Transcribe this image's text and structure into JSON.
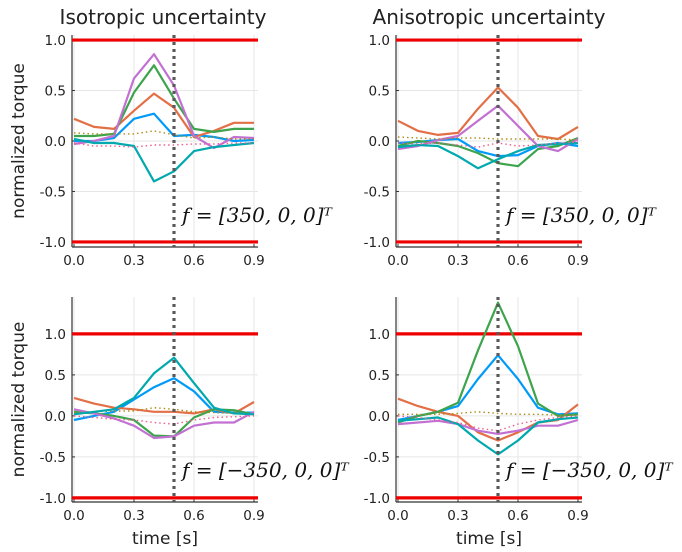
{
  "colors": {
    "limit": "#ee0000",
    "marker": "#5a5a5a",
    "grid": "#e6e6e6",
    "series": [
      "#009af9",
      "#e26f46",
      "#3da44d",
      "#c271d2",
      "#ac8d18",
      "#00a9ad",
      "#ed5d92"
    ]
  },
  "chart_data": [
    {
      "type": "line",
      "title": "Isotropic uncertainty",
      "xlabel": "",
      "ylabel": "normalized torque",
      "annotation": "f = [350, 0, 0]ᵀ",
      "xlim": [
        -0.01,
        0.92
      ],
      "ylim": [
        -1.05,
        1.05
      ],
      "xticks": [
        "0.0",
        "0.3",
        "0.6",
        "0.9"
      ],
      "yticks": [
        "-1.0",
        "-0.5",
        "0.0",
        "0.5",
        "1.0"
      ],
      "limits": [
        1.0,
        -1.0
      ],
      "event_x": 0.5,
      "x": [
        0.0,
        0.1,
        0.2,
        0.3,
        0.4,
        0.5,
        0.6,
        0.7,
        0.8,
        0.9
      ],
      "series": [
        {
          "values": [
            0.0,
            0.0,
            0.03,
            0.22,
            0.27,
            0.05,
            0.06,
            0.04,
            0.0,
            0.01
          ],
          "color": 0
        },
        {
          "values": [
            0.22,
            0.14,
            0.12,
            0.3,
            0.47,
            0.33,
            0.04,
            0.1,
            0.18,
            0.18
          ],
          "color": 1
        },
        {
          "values": [
            0.05,
            0.05,
            0.07,
            0.48,
            0.75,
            0.42,
            0.12,
            0.09,
            0.12,
            0.12
          ],
          "color": 2
        },
        {
          "values": [
            -0.03,
            0.0,
            0.05,
            0.62,
            0.86,
            0.55,
            0.05,
            -0.07,
            0.04,
            0.03
          ],
          "color": 3
        },
        {
          "values": [
            0.08,
            0.07,
            0.07,
            0.07,
            0.1,
            0.06,
            0.03,
            0.04,
            0.02,
            0.02
          ],
          "color": 4,
          "dotted": true
        },
        {
          "values": [
            0.02,
            -0.02,
            -0.02,
            -0.05,
            -0.4,
            -0.3,
            -0.1,
            -0.06,
            -0.04,
            -0.02
          ],
          "color": 5
        },
        {
          "values": [
            -0.02,
            -0.05,
            -0.05,
            -0.06,
            -0.04,
            -0.04,
            -0.03,
            -0.03,
            -0.02,
            -0.02
          ],
          "color": 6,
          "dotted": true
        }
      ]
    },
    {
      "type": "line",
      "title": "Anisotropic uncertainty",
      "xlabel": "",
      "ylabel": "",
      "annotation": "f = [350, 0, 0]ᵀ",
      "xlim": [
        -0.01,
        0.92
      ],
      "ylim": [
        -1.05,
        1.05
      ],
      "xticks": [
        "0.0",
        "0.3",
        "0.6",
        "0.9"
      ],
      "yticks": [
        "-1.0",
        "-0.5",
        "0.0",
        "0.5",
        "1.0"
      ],
      "limits": [
        1.0,
        -1.0
      ],
      "event_x": 0.5,
      "x": [
        0.0,
        0.1,
        0.2,
        0.3,
        0.4,
        0.5,
        0.6,
        0.7,
        0.8,
        0.9
      ],
      "series": [
        {
          "values": [
            -0.02,
            -0.01,
            0.01,
            0.02,
            -0.1,
            -0.15,
            -0.14,
            -0.05,
            -0.02,
            -0.05
          ],
          "color": 0
        },
        {
          "values": [
            0.2,
            0.1,
            0.06,
            0.08,
            0.32,
            0.53,
            0.33,
            0.05,
            0.02,
            0.14
          ],
          "color": 1
        },
        {
          "values": [
            -0.05,
            0.0,
            -0.02,
            -0.05,
            -0.12,
            -0.22,
            -0.25,
            -0.08,
            -0.05,
            0.03
          ],
          "color": 2
        },
        {
          "values": [
            -0.08,
            -0.05,
            0.01,
            0.05,
            0.2,
            0.35,
            0.15,
            -0.05,
            -0.1,
            0.02
          ],
          "color": 3
        },
        {
          "values": [
            0.04,
            0.03,
            0.02,
            0.03,
            0.03,
            0.02,
            0.02,
            0.02,
            0.02,
            0.01
          ],
          "color": 4,
          "dotted": true
        },
        {
          "values": [
            -0.06,
            -0.04,
            -0.05,
            -0.15,
            -0.27,
            -0.18,
            -0.1,
            -0.04,
            -0.03,
            -0.02
          ],
          "color": 5
        },
        {
          "values": [
            -0.02,
            -0.03,
            -0.02,
            -0.04,
            -0.06,
            -0.02,
            -0.05,
            -0.04,
            -0.02,
            -0.01
          ],
          "color": 6,
          "dotted": true
        }
      ]
    },
    {
      "type": "line",
      "title": "",
      "xlabel": "time [s]",
      "ylabel": "normalized torque",
      "annotation": "f = [−350, 0, 0]ᵀ",
      "xlim": [
        -0.01,
        0.92
      ],
      "ylim": [
        -1.05,
        1.45
      ],
      "xticks": [
        "0.0",
        "0.3",
        "0.6",
        "0.9"
      ],
      "yticks": [
        "-1.0",
        "-0.5",
        "0.0",
        "0.5",
        "1.0"
      ],
      "limits": [
        1.0,
        -1.0
      ],
      "event_x": 0.5,
      "x": [
        0.0,
        0.1,
        0.2,
        0.3,
        0.4,
        0.5,
        0.6,
        0.7,
        0.8,
        0.9
      ],
      "series": [
        {
          "values": [
            -0.05,
            0.0,
            0.05,
            0.2,
            0.35,
            0.46,
            0.3,
            0.05,
            0.04,
            0.04
          ],
          "color": 0
        },
        {
          "values": [
            0.22,
            0.15,
            0.1,
            0.08,
            0.05,
            0.05,
            0.03,
            0.08,
            0.03,
            0.17
          ],
          "color": 1
        },
        {
          "values": [
            0.05,
            0.03,
            0.0,
            -0.05,
            -0.24,
            -0.25,
            -0.02,
            0.08,
            0.07,
            0.02
          ],
          "color": 2
        },
        {
          "values": [
            0.08,
            0.03,
            -0.03,
            -0.12,
            -0.27,
            -0.25,
            -0.12,
            -0.08,
            -0.08,
            0.05
          ],
          "color": 3
        },
        {
          "values": [
            0.04,
            0.05,
            0.06,
            0.06,
            0.1,
            0.08,
            0.05,
            0.04,
            0.03,
            0.02
          ],
          "color": 4,
          "dotted": true
        },
        {
          "values": [
            0.02,
            0.05,
            0.08,
            0.22,
            0.52,
            0.71,
            0.4,
            0.1,
            0.03,
            0.02
          ],
          "color": 5
        },
        {
          "values": [
            0.0,
            -0.02,
            -0.04,
            -0.05,
            -0.08,
            -0.1,
            -0.05,
            -0.02,
            -0.01,
            0.0
          ],
          "color": 6,
          "dotted": true
        }
      ]
    },
    {
      "type": "line",
      "title": "",
      "xlabel": "time [s]",
      "ylabel": "",
      "annotation": "f = [−350, 0, 0]ᵀ",
      "xlim": [
        -0.01,
        0.92
      ],
      "ylim": [
        -1.05,
        1.45
      ],
      "xticks": [
        "0.0",
        "0.3",
        "0.6",
        "0.9"
      ],
      "yticks": [
        "-1.0",
        "-0.5",
        "0.0",
        "0.5",
        "1.0"
      ],
      "limits": [
        1.0,
        -1.0
      ],
      "event_x": 0.5,
      "x": [
        0.0,
        0.1,
        0.2,
        0.3,
        0.4,
        0.5,
        0.6,
        0.7,
        0.8,
        0.9
      ],
      "series": [
        {
          "values": [
            -0.05,
            0.0,
            0.05,
            0.12,
            0.45,
            0.74,
            0.45,
            0.1,
            0.02,
            0.03
          ],
          "color": 0
        },
        {
          "values": [
            0.21,
            0.12,
            0.05,
            0.0,
            -0.2,
            -0.3,
            -0.2,
            -0.08,
            -0.05,
            0.14
          ],
          "color": 1
        },
        {
          "values": [
            -0.08,
            0.0,
            0.05,
            0.16,
            0.8,
            1.38,
            0.85,
            0.15,
            0.0,
            0.02
          ],
          "color": 2
        },
        {
          "values": [
            -0.1,
            -0.08,
            -0.06,
            -0.1,
            -0.18,
            -0.22,
            -0.18,
            -0.12,
            -0.12,
            -0.05
          ],
          "color": 3
        },
        {
          "values": [
            0.02,
            0.02,
            0.02,
            0.03,
            0.05,
            0.03,
            0.02,
            0.02,
            0.01,
            0.01
          ],
          "color": 4,
          "dotted": true
        },
        {
          "values": [
            -0.06,
            -0.04,
            -0.02,
            -0.1,
            -0.3,
            -0.47,
            -0.3,
            -0.08,
            -0.04,
            -0.02
          ],
          "color": 5
        },
        {
          "values": [
            0.0,
            -0.02,
            -0.05,
            -0.08,
            -0.15,
            -0.18,
            -0.1,
            -0.05,
            -0.02,
            0.0
          ],
          "color": 6,
          "dotted": true
        }
      ]
    }
  ]
}
